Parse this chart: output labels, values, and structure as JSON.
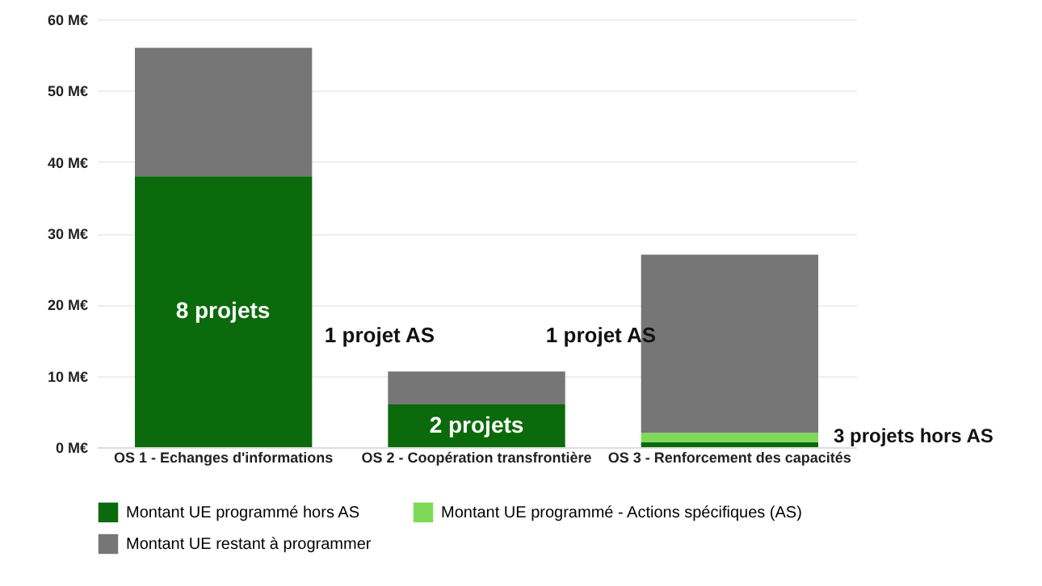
{
  "chart_data": {
    "type": "bar",
    "stacked": true,
    "categories": [
      "OS 1 - Echanges d'informations",
      "OS 2 - Coopération transfrontière",
      "OS 3 - Renforcement des capacités"
    ],
    "series": [
      {
        "name": "Montant UE programmé hors AS",
        "color": "#0b6a0b",
        "values": [
          38,
          6,
          0.7
        ]
      },
      {
        "name": "Montant UE programmé - Actions spécifiques (AS)",
        "color": "#7ed957",
        "values": [
          null,
          null,
          1.3
        ]
      },
      {
        "name": "Montant UE restant à programmer",
        "color": "#767676",
        "values": [
          18,
          4.6,
          25
        ]
      }
    ],
    "ylim": [
      0,
      60
    ],
    "yticks": [
      {
        "value": 0,
        "label": "0 M€"
      },
      {
        "value": 10,
        "label": "10 M€"
      },
      {
        "value": 20,
        "label": "20 M€"
      },
      {
        "value": 30,
        "label": "30 M€"
      },
      {
        "value": 40,
        "label": "40 M€"
      },
      {
        "value": 50,
        "label": "50 M€"
      },
      {
        "value": 60,
        "label": "60 M€"
      }
    ],
    "grid": "y",
    "legend": "bottom",
    "annotations": [
      "8 projets",
      "2 projets",
      "1 projet AS",
      "1 projet AS",
      "3 projets hors AS"
    ]
  }
}
